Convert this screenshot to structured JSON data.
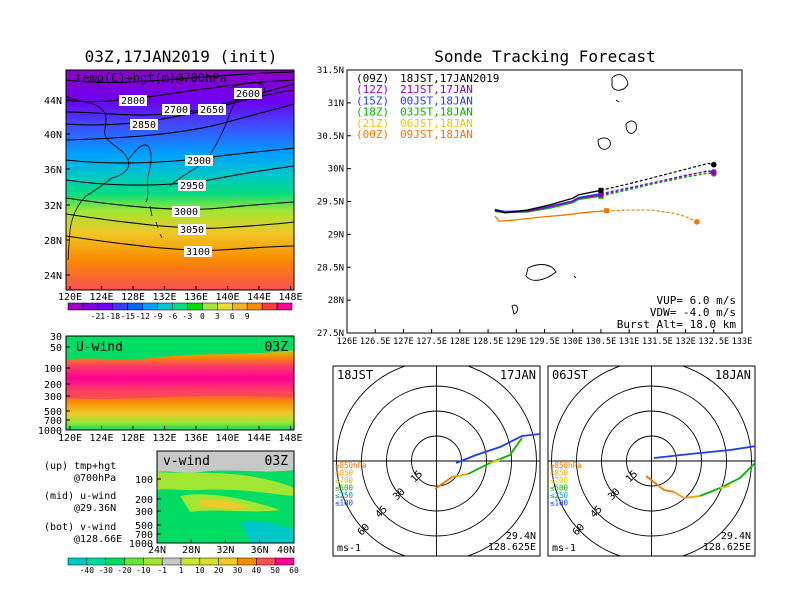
{
  "titles": {
    "left": "03Z,17JAN2019 (init)",
    "right": "Sonde Tracking Forecast"
  },
  "map_panel": {
    "label": "temp(C)+hgt(m)@700hPa",
    "y_ticks": [
      "44N",
      "40N",
      "36N",
      "32N",
      "28N",
      "24N"
    ],
    "x_ticks": [
      "120E",
      "124E",
      "128E",
      "132E",
      "136E",
      "140E",
      "144E",
      "148E"
    ],
    "contours": [
      "2600",
      "2650",
      "2700",
      "2800",
      "2850",
      "2900",
      "2950",
      "3000",
      "3050",
      "3100"
    ],
    "colorbar": [
      "-21",
      "-18",
      "-15",
      "-12",
      "-9",
      "-6",
      "-3",
      "0",
      "3",
      "6",
      "9"
    ],
    "colorbar_colors": [
      "#a000c8",
      "#8200dc",
      "#6e00f0",
      "#3c3cff",
      "#0064ff",
      "#00a0ff",
      "#00c8c8",
      "#00dc82",
      "#00dc00",
      "#a0e632",
      "#e6dc32",
      "#f0b428",
      "#fa8c00",
      "#fa3c3c",
      "#ff0096"
    ]
  },
  "uwind_panel": {
    "label": "U-wind",
    "time": "03Z",
    "y_ticks": [
      "30",
      "50",
      "100",
      "200",
      "300",
      "500",
      "700",
      "1000"
    ],
    "x_ticks": [
      "120E",
      "124E",
      "128E",
      "132E",
      "136E",
      "140E",
      "144E",
      "148E"
    ]
  },
  "vwind_panel": {
    "label": "v-wind",
    "time": "03Z",
    "y_ticks": [
      "100",
      "200",
      "300",
      "500",
      "700",
      "1000"
    ],
    "x_ticks": [
      "24N",
      "28N",
      "32N",
      "36N",
      "40N"
    ]
  },
  "legend_notes": {
    "up1": "(up) tmp+hgt",
    "up2": "@700hPa",
    "mid1": "(mid) u-wind",
    "mid2": "@29.36N",
    "bot1": "(bot) v-wind",
    "bot2": "@128.66E"
  },
  "wind_colorbar": {
    "labels": [
      "-40",
      "-30",
      "-20",
      "-10",
      "-1",
      "1",
      "10",
      "20",
      "30",
      "40",
      "50",
      "60"
    ],
    "colors": [
      "#00c8c8",
      "#00dca0",
      "#00dc64",
      "#64e632",
      "#a0e632",
      "#c8c8c8",
      "#c8e632",
      "#dcdc32",
      "#f0c828",
      "#fa8c00",
      "#fa5050",
      "#ff0096"
    ]
  },
  "chart_data": {
    "type": "line",
    "title": "Sonde Tracking Forecast",
    "xlim": [
      126,
      133
    ],
    "ylim": [
      27.5,
      31.5
    ],
    "x_ticks": [
      "126E",
      "126.5E",
      "127E",
      "127.5E",
      "128E",
      "128.5E",
      "129E",
      "129.5E",
      "130E",
      "130.5E",
      "131E",
      "131.5E",
      "132E",
      "132.5E",
      "133E"
    ],
    "y_ticks": [
      "31.5N",
      "31N",
      "30.5N",
      "30N",
      "29.5N",
      "29N",
      "28.5N",
      "28N",
      "27.5N"
    ],
    "legend": [
      {
        "code": "(09Z)",
        "text": "18JST,17JAN2019",
        "color": "#000000"
      },
      {
        "code": "(12Z)",
        "text": "21JST,17JAN",
        "color": "#8c00c8"
      },
      {
        "code": "(15Z)",
        "text": "00JST,18JAN",
        "color": "#1e3cff"
      },
      {
        "code": "(18Z)",
        "text": "03JST,18JAN",
        "color": "#00b400"
      },
      {
        "code": "(21Z)",
        "text": "06JST,18JAN",
        "color": "#e6c800"
      },
      {
        "code": "(00Z)",
        "text": "09JST,18JAN",
        "color": "#f07800"
      }
    ],
    "series": [
      {
        "name": "(09Z)",
        "color": "#000000",
        "x": [
          128.62,
          128.8,
          129.2,
          129.6,
          130.0,
          130.1,
          130.5,
          131.0,
          131.5,
          132.0,
          132.4,
          132.5
        ],
        "y": [
          29.37,
          29.33,
          29.37,
          29.45,
          29.55,
          29.6,
          29.67,
          29.77,
          29.88,
          29.99,
          30.08,
          30.06
        ]
      },
      {
        "name": "(12Z)",
        "color": "#8c00c8",
        "x": [
          128.62,
          128.8,
          129.2,
          129.6,
          130.0,
          130.1,
          130.5,
          131.0,
          131.5,
          132.0,
          132.4,
          132.5
        ],
        "y": [
          29.36,
          29.33,
          29.35,
          29.42,
          29.5,
          29.55,
          29.6,
          29.7,
          29.8,
          29.9,
          29.96,
          29.94
        ]
      },
      {
        "name": "(15Z)",
        "color": "#1e3cff",
        "x": [
          128.62,
          128.8,
          129.2,
          129.6,
          130.0,
          130.1,
          130.5,
          131.0,
          131.5,
          132.0,
          132.4,
          132.5
        ],
        "y": [
          29.38,
          29.35,
          29.36,
          29.43,
          29.51,
          29.56,
          29.62,
          29.71,
          29.8,
          29.89,
          29.97,
          29.95
        ]
      },
      {
        "name": "(18Z)",
        "color": "#00b400",
        "x": [
          128.62,
          128.8,
          129.2,
          129.6,
          130.0,
          130.1,
          130.5,
          131.0,
          131.5,
          132.0,
          132.4,
          132.5
        ],
        "y": [
          29.35,
          29.33,
          29.34,
          29.4,
          29.48,
          29.53,
          29.58,
          29.68,
          29.78,
          29.87,
          29.93,
          29.92
        ]
      },
      {
        "name": "(21Z)",
        "color": "#e6c800",
        "x": [
          128.62,
          128.8,
          129.2,
          129.6,
          130.0,
          130.1,
          130.5,
          131.0,
          131.5,
          132.0,
          132.4,
          132.5
        ],
        "y": [
          29.35,
          29.33,
          29.35,
          29.41,
          29.49,
          29.54,
          29.59,
          29.69,
          29.79,
          29.88,
          29.94,
          29.93
        ]
      },
      {
        "name": "(00Z)",
        "color": "#f07800",
        "x": [
          128.62,
          128.7,
          129.0,
          129.4,
          129.8,
          130.2,
          130.6,
          131.0,
          131.4,
          131.8,
          132.0,
          132.2
        ],
        "y": [
          29.28,
          29.2,
          29.22,
          29.26,
          29.29,
          29.33,
          29.36,
          29.37,
          29.37,
          29.32,
          29.27,
          29.19
        ]
      }
    ],
    "params": {
      "vup": "VUP=  6.0 m/s",
      "vdw": "VDW= -4.0 m/s",
      "burst": "Burst Alt= 18.0 km"
    }
  },
  "hodographs": [
    {
      "left": "18JST",
      "right": "17JAN",
      "units": "ms-1",
      "lat": "29.4N",
      "lon": "128.625E",
      "rings": [
        "15",
        "30",
        "45",
        "60"
      ],
      "levels": [
        {
          "label": "≥850hPa",
          "color": "#f07800"
        },
        {
          "label": "≤850",
          "color": "#f0a000"
        },
        {
          "label": "≤700",
          "color": "#e6c800"
        },
        {
          "label": "≤500",
          "color": "#00b400"
        },
        {
          "label": "≤250",
          "color": "#00a0c8"
        },
        {
          "label": "≤100",
          "color": "#1e3cff"
        }
      ]
    },
    {
      "left": "06JST",
      "right": "18JAN",
      "units": "ms-1",
      "lat": "29.4N",
      "lon": "128.625E",
      "rings": [
        "15",
        "30",
        "45",
        "60"
      ],
      "levels": [
        {
          "label": "≥850hPa",
          "color": "#f07800"
        },
        {
          "label": "≤850",
          "color": "#f0a000"
        },
        {
          "label": "≤700",
          "color": "#e6c800"
        },
        {
          "label": "≤500",
          "color": "#00b400"
        },
        {
          "label": "≤250",
          "color": "#00a0c8"
        },
        {
          "label": "≤100",
          "color": "#1e3cff"
        }
      ]
    }
  ]
}
